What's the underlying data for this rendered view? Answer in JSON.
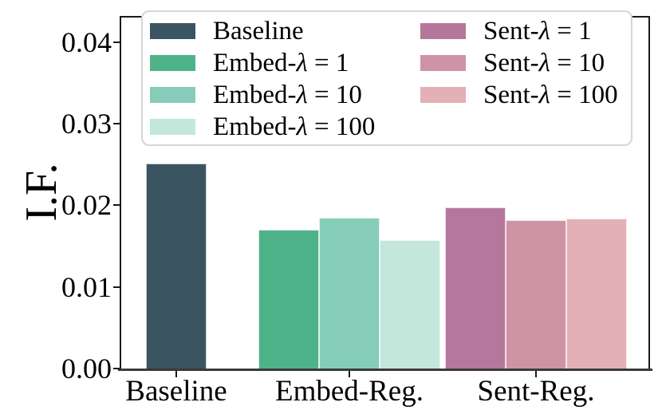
{
  "figure": {
    "background": "#ffffff"
  },
  "chart_data": {
    "type": "bar",
    "title": "",
    "xlabel": "",
    "ylabel": "I.F.",
    "ylim": [
      0,
      0.043
    ],
    "yticks": [
      "0.00",
      "0.01",
      "0.02",
      "0.03",
      "0.04"
    ],
    "grid": false,
    "categories": [
      "Baseline",
      "Embed-Reg.",
      "Sent-Reg."
    ],
    "series": [
      {
        "name": "Baseline",
        "category": "Baseline",
        "value": 0.0251,
        "color": "#3a5560"
      },
      {
        "name": "Embed-λ = 1",
        "category": "Embed-Reg.",
        "value": 0.017,
        "color": "#4fb389"
      },
      {
        "name": "Embed-λ = 10",
        "category": "Embed-Reg.",
        "value": 0.0185,
        "color": "#86cdb9"
      },
      {
        "name": "Embed-λ = 100",
        "category": "Embed-Reg.",
        "value": 0.0157,
        "color": "#c3e7db"
      },
      {
        "name": "Sent-λ = 1",
        "category": "Sent-Reg.",
        "value": 0.0197,
        "color": "#b5779b"
      },
      {
        "name": "Sent-λ = 10",
        "category": "Sent-Reg.",
        "value": 0.0182,
        "color": "#cf93a6"
      },
      {
        "name": "Sent-λ = 100",
        "category": "Sent-Reg.",
        "value": 0.0184,
        "color": "#e2b0b5"
      }
    ],
    "legend": {
      "position": "upper center",
      "columns": 2,
      "column_items": [
        [
          "Baseline",
          "Embed-λ = 1",
          "Embed-λ = 10",
          "Embed-λ = 100"
        ],
        [
          "Sent-λ = 1",
          "Sent-λ = 10",
          "Sent-λ = 100"
        ]
      ]
    }
  }
}
